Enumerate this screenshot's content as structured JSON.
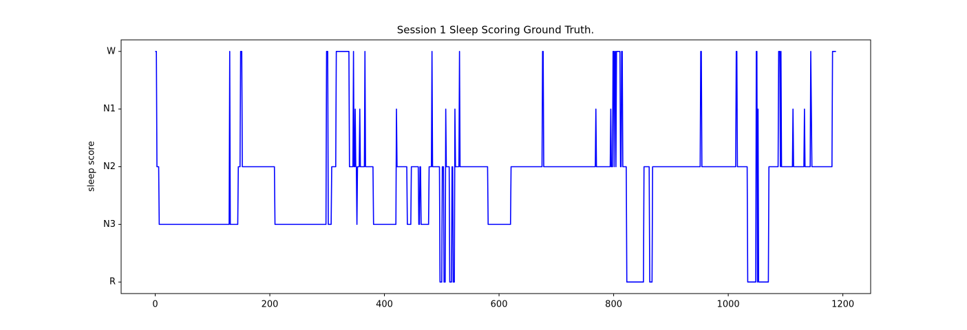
{
  "chart_data": {
    "type": "line",
    "title": "Session 1 Sleep Scoring Ground Truth.",
    "y_label": "sleep score",
    "color": "#0000ff",
    "x": [
      0,
      2,
      3,
      6,
      7,
      129,
      130,
      131,
      144,
      145,
      148,
      149,
      151,
      152,
      208,
      209,
      298,
      299,
      301,
      302,
      307,
      308,
      315,
      316,
      338,
      339,
      345,
      346,
      347,
      348,
      349,
      350,
      351,
      352,
      353,
      356,
      357,
      358,
      365,
      366,
      367,
      380,
      381,
      420,
      421,
      422,
      439,
      440,
      446,
      447,
      459,
      460,
      461,
      462,
      463,
      464,
      477,
      478,
      482,
      483,
      484,
      496,
      497,
      500,
      501,
      503,
      504,
      506,
      507,
      508,
      513,
      514,
      517,
      518,
      519,
      520,
      522,
      523,
      524,
      530,
      531,
      532,
      580,
      581,
      620,
      621,
      675,
      676,
      677,
      678,
      768,
      769,
      770,
      794,
      795,
      796,
      798,
      799,
      800,
      801,
      802,
      803,
      804,
      805,
      811,
      812,
      813,
      814,
      815,
      816,
      822,
      823,
      852,
      853,
      862,
      863,
      867,
      868,
      951,
      952,
      953,
      954,
      1013,
      1014,
      1015,
      1016,
      1033,
      1034,
      1048,
      1049,
      1050,
      1051,
      1052,
      1053,
      1070,
      1071,
      1087,
      1088,
      1090,
      1091,
      1092,
      1093,
      1112,
      1113,
      1114,
      1132,
      1133,
      1134,
      1143,
      1144,
      1145,
      1146,
      1181,
      1182,
      1188
    ],
    "values": [
      4,
      4,
      2,
      2,
      1,
      1,
      4,
      1,
      1,
      2,
      2,
      4,
      4,
      2,
      2,
      1,
      1,
      4,
      4,
      1,
      1,
      2,
      2,
      4,
      4,
      2,
      2,
      4,
      2,
      2,
      3,
      2,
      2,
      1,
      2,
      2,
      3,
      2,
      2,
      4,
      2,
      2,
      1,
      1,
      3,
      2,
      2,
      1,
      1,
      2,
      2,
      1,
      1,
      2,
      2,
      1,
      1,
      2,
      2,
      4,
      2,
      2,
      0,
      0,
      2,
      2,
      0,
      0,
      3,
      2,
      2,
      0,
      0,
      2,
      2,
      0,
      0,
      3,
      2,
      2,
      4,
      2,
      2,
      1,
      1,
      2,
      2,
      4,
      4,
      2,
      2,
      3,
      2,
      2,
      3,
      2,
      2,
      4,
      4,
      2,
      4,
      4,
      2,
      4,
      4,
      2,
      2,
      4,
      4,
      2,
      2,
      0,
      0,
      2,
      2,
      0,
      0,
      2,
      2,
      4,
      4,
      2,
      2,
      4,
      4,
      2,
      2,
      0,
      0,
      4,
      4,
      0,
      3,
      0,
      0,
      2,
      2,
      4,
      4,
      2,
      4,
      2,
      2,
      3,
      2,
      2,
      3,
      2,
      2,
      4,
      3,
      2,
      2,
      4,
      4
    ],
    "xlim": [
      -59.5,
      1248.5
    ],
    "xticks": [
      0,
      200,
      400,
      600,
      800,
      1000,
      1200
    ],
    "ylim": [
      -0.2,
      4.2
    ],
    "yticks": [
      {
        "value": 0,
        "label": "R"
      },
      {
        "value": 1,
        "label": "N3"
      },
      {
        "value": 2,
        "label": "N2"
      },
      {
        "value": 3,
        "label": "N1"
      },
      {
        "value": 4,
        "label": "W"
      }
    ]
  }
}
